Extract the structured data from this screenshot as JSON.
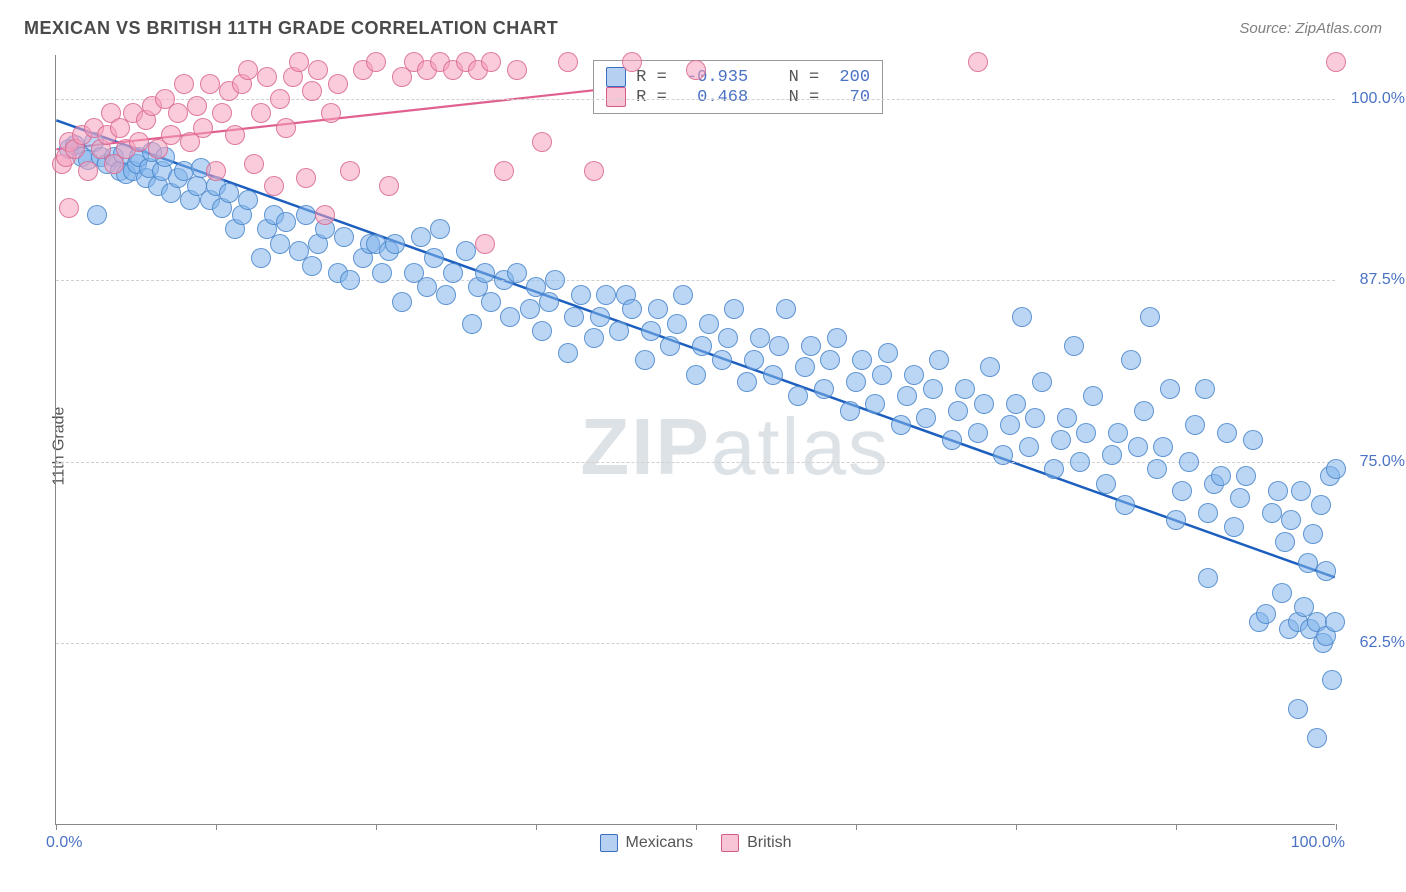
{
  "title": "MEXICAN VS BRITISH 11TH GRADE CORRELATION CHART",
  "source_prefix": "Source: ",
  "source_link": "ZipAtlas.com",
  "ylabel": "11th Grade",
  "watermark": "ZIPatlas",
  "chart": {
    "type": "scatter",
    "xlim": [
      0,
      100
    ],
    "ylim": [
      50,
      103
    ],
    "x_pct_of_width": true,
    "yticks": [
      62.5,
      75.0,
      87.5,
      100.0
    ],
    "ytick_labels": [
      "62.5%",
      "75.0%",
      "87.5%",
      "100.0%"
    ],
    "xtick_labels": {
      "left": "0.0%",
      "right": "100.0%"
    },
    "xtick_positions": [
      0,
      12.5,
      25,
      37.5,
      50,
      62.5,
      75,
      87.5,
      100
    ],
    "background_color": "#ffffff",
    "grid_color": "#d0d0d0",
    "dot_radius": 10,
    "series": [
      {
        "name": "Mexicans",
        "color_fill": "rgba(130,180,235,0.55)",
        "color_stroke": "rgba(70,130,200,0.8)",
        "regression": {
          "x1": 0,
          "y1": 98.5,
          "x2": 100,
          "y2": 67.0,
          "color": "#1d5fbf",
          "width": 2.5
        },
        "R": -0.935,
        "N": 200,
        "points": [
          [
            1,
            96.5
          ],
          [
            1.5,
            96.8
          ],
          [
            2,
            96
          ],
          [
            2.5,
            95.8
          ],
          [
            3,
            97
          ],
          [
            3.2,
            92
          ],
          [
            3.5,
            96
          ],
          [
            4,
            95.5
          ],
          [
            4.5,
            96
          ],
          [
            5,
            95
          ],
          [
            5.2,
            96.2
          ],
          [
            5.5,
            94.8
          ],
          [
            6,
            95
          ],
          [
            6.3,
            95.5
          ],
          [
            6.5,
            96
          ],
          [
            7,
            94.5
          ],
          [
            7.3,
            95.2
          ],
          [
            7.5,
            96.3
          ],
          [
            8,
            94
          ],
          [
            8.3,
            95
          ],
          [
            8.5,
            96
          ],
          [
            9,
            93.5
          ],
          [
            9.5,
            94.5
          ],
          [
            10,
            95
          ],
          [
            10.5,
            93
          ],
          [
            11,
            94
          ],
          [
            11.3,
            95.2
          ],
          [
            12,
            93
          ],
          [
            12.5,
            94
          ],
          [
            13,
            92.5
          ],
          [
            13.5,
            93.5
          ],
          [
            14,
            91
          ],
          [
            14.5,
            92
          ],
          [
            15,
            93
          ],
          [
            16,
            89
          ],
          [
            16.5,
            91
          ],
          [
            17,
            92
          ],
          [
            17.5,
            90
          ],
          [
            18,
            91.5
          ],
          [
            19,
            89.5
          ],
          [
            19.5,
            92
          ],
          [
            20,
            88.5
          ],
          [
            20.5,
            90
          ],
          [
            21,
            91
          ],
          [
            22,
            88
          ],
          [
            22.5,
            90.5
          ],
          [
            23,
            87.5
          ],
          [
            24,
            89
          ],
          [
            24.5,
            90
          ],
          [
            25,
            90
          ],
          [
            25.5,
            88
          ],
          [
            26,
            89.5
          ],
          [
            26.5,
            90
          ],
          [
            27,
            86
          ],
          [
            28,
            88
          ],
          [
            28.5,
            90.5
          ],
          [
            29,
            87
          ],
          [
            29.5,
            89
          ],
          [
            30,
            91
          ],
          [
            30.5,
            86.5
          ],
          [
            31,
            88
          ],
          [
            32,
            89.5
          ],
          [
            32.5,
            84.5
          ],
          [
            33,
            87
          ],
          [
            33.5,
            88
          ],
          [
            34,
            86
          ],
          [
            35,
            87.5
          ],
          [
            35.5,
            85
          ],
          [
            36,
            88
          ],
          [
            37,
            85.5
          ],
          [
            37.5,
            87
          ],
          [
            38,
            84
          ],
          [
            38.5,
            86
          ],
          [
            39,
            87.5
          ],
          [
            40,
            82.5
          ],
          [
            40.5,
            85
          ],
          [
            41,
            86.5
          ],
          [
            42,
            83.5
          ],
          [
            42.5,
            85
          ],
          [
            43,
            86.5
          ],
          [
            44,
            84
          ],
          [
            44.5,
            86.5
          ],
          [
            45,
            85.5
          ],
          [
            46,
            82
          ],
          [
            46.5,
            84
          ],
          [
            47,
            85.5
          ],
          [
            48,
            83
          ],
          [
            48.5,
            84.5
          ],
          [
            49,
            86.5
          ],
          [
            50,
            81
          ],
          [
            50.5,
            83
          ],
          [
            51,
            84.5
          ],
          [
            52,
            82
          ],
          [
            52.5,
            83.5
          ],
          [
            53,
            85.5
          ],
          [
            54,
            80.5
          ],
          [
            54.5,
            82
          ],
          [
            55,
            83.5
          ],
          [
            56,
            81
          ],
          [
            56.5,
            83
          ],
          [
            57,
            85.5
          ],
          [
            58,
            79.5
          ],
          [
            58.5,
            81.5
          ],
          [
            59,
            83
          ],
          [
            60,
            80
          ],
          [
            60.5,
            82
          ],
          [
            61,
            83.5
          ],
          [
            62,
            78.5
          ],
          [
            62.5,
            80.5
          ],
          [
            63,
            82
          ],
          [
            64,
            79
          ],
          [
            64.5,
            81
          ],
          [
            65,
            82.5
          ],
          [
            66,
            77.5
          ],
          [
            66.5,
            79.5
          ],
          [
            67,
            81
          ],
          [
            68,
            78
          ],
          [
            68.5,
            80
          ],
          [
            69,
            82
          ],
          [
            70,
            76.5
          ],
          [
            70.5,
            78.5
          ],
          [
            71,
            80
          ],
          [
            72,
            77
          ],
          [
            72.5,
            79
          ],
          [
            73,
            81.5
          ],
          [
            74,
            75.5
          ],
          [
            74.5,
            77.5
          ],
          [
            75,
            79
          ],
          [
            75.5,
            85
          ],
          [
            76,
            76
          ],
          [
            76.5,
            78
          ],
          [
            77,
            80.5
          ],
          [
            78,
            74.5
          ],
          [
            78.5,
            76.5
          ],
          [
            79,
            78
          ],
          [
            79.5,
            83
          ],
          [
            80,
            75
          ],
          [
            80.5,
            77
          ],
          [
            81,
            79.5
          ],
          [
            82,
            73.5
          ],
          [
            82.5,
            75.5
          ],
          [
            83,
            77
          ],
          [
            83.5,
            72
          ],
          [
            84,
            82
          ],
          [
            84.5,
            76
          ],
          [
            85,
            78.5
          ],
          [
            85.5,
            85
          ],
          [
            86,
            74.5
          ],
          [
            86.5,
            76
          ],
          [
            87,
            80
          ],
          [
            87.5,
            71
          ],
          [
            88,
            73
          ],
          [
            88.5,
            75
          ],
          [
            89,
            77.5
          ],
          [
            89.8,
            80
          ],
          [
            90,
            71.5
          ],
          [
            90.5,
            73.5
          ],
          [
            91,
            74
          ],
          [
            91.5,
            77
          ],
          [
            92,
            70.5
          ],
          [
            92.5,
            72.5
          ],
          [
            93,
            74
          ],
          [
            93.5,
            76.5
          ],
          [
            94,
            64
          ],
          [
            94.5,
            64.5
          ],
          [
            95,
            71.5
          ],
          [
            95.5,
            73
          ],
          [
            95.8,
            66
          ],
          [
            96,
            69.5
          ],
          [
            96.3,
            63.5
          ],
          [
            96.5,
            71
          ],
          [
            97,
            64
          ],
          [
            97.3,
            73
          ],
          [
            97.5,
            65
          ],
          [
            97.8,
            68
          ],
          [
            98,
            63.5
          ],
          [
            98.2,
            70
          ],
          [
            98.5,
            64
          ],
          [
            98.8,
            72
          ],
          [
            99,
            62.5
          ],
          [
            99.2,
            67.5
          ],
          [
            99.5,
            74
          ],
          [
            99.2,
            63
          ],
          [
            99.7,
            60
          ],
          [
            99.9,
            64
          ],
          [
            100,
            74.5
          ],
          [
            98.5,
            56
          ],
          [
            97,
            58
          ],
          [
            90,
            67
          ]
        ]
      },
      {
        "name": "British",
        "color_fill": "rgba(245,160,190,0.55)",
        "color_stroke": "rgba(215,100,140,0.8)",
        "regression": {
          "x1": 0,
          "y1": 96.5,
          "x2": 62,
          "y2": 102.5,
          "color": "#e06090",
          "width": 2.2
        },
        "R": 0.468,
        "N": 70,
        "points": [
          [
            0.5,
            95.5
          ],
          [
            0.8,
            96
          ],
          [
            1,
            97
          ],
          [
            1,
            92.5
          ],
          [
            1.5,
            96.5
          ],
          [
            2,
            97.5
          ],
          [
            2.5,
            95
          ],
          [
            3,
            98
          ],
          [
            3.5,
            96.5
          ],
          [
            4,
            97.5
          ],
          [
            4.3,
            99
          ],
          [
            4.5,
            95.5
          ],
          [
            5,
            98
          ],
          [
            5.5,
            96.5
          ],
          [
            6,
            99
          ],
          [
            6.5,
            97
          ],
          [
            7,
            98.5
          ],
          [
            7.5,
            99.5
          ],
          [
            8,
            96.5
          ],
          [
            8.5,
            100
          ],
          [
            9,
            97.5
          ],
          [
            9.5,
            99
          ],
          [
            10,
            101
          ],
          [
            10.5,
            97
          ],
          [
            11,
            99.5
          ],
          [
            11.5,
            98
          ],
          [
            12,
            101
          ],
          [
            12.5,
            95
          ],
          [
            13,
            99
          ],
          [
            13.5,
            100.5
          ],
          [
            14,
            97.5
          ],
          [
            14.5,
            101
          ],
          [
            15,
            102
          ],
          [
            15.5,
            95.5
          ],
          [
            16,
            99
          ],
          [
            16.5,
            101.5
          ],
          [
            17,
            94
          ],
          [
            17.5,
            100
          ],
          [
            18,
            98
          ],
          [
            18.5,
            101.5
          ],
          [
            19,
            102.5
          ],
          [
            19.5,
            94.5
          ],
          [
            20,
            100.5
          ],
          [
            20.5,
            102
          ],
          [
            21,
            92
          ],
          [
            21.5,
            99
          ],
          [
            22,
            101
          ],
          [
            23,
            95
          ],
          [
            24,
            102
          ],
          [
            25,
            102.5
          ],
          [
            26,
            94
          ],
          [
            27,
            101.5
          ],
          [
            28,
            102.5
          ],
          [
            29,
            102
          ],
          [
            30,
            102.5
          ],
          [
            31,
            102
          ],
          [
            32,
            102.5
          ],
          [
            33,
            102
          ],
          [
            33.5,
            90
          ],
          [
            34,
            102.5
          ],
          [
            35,
            95
          ],
          [
            36,
            102
          ],
          [
            38,
            97
          ],
          [
            40,
            102.5
          ],
          [
            42,
            95
          ],
          [
            45,
            102.5
          ],
          [
            50,
            102
          ],
          [
            72,
            102.5
          ],
          [
            100,
            102.5
          ]
        ]
      }
    ]
  },
  "legend": {
    "series1": "Mexicans",
    "series2": "British"
  },
  "stats": {
    "r_label": "R = ",
    "n_label": "N = ",
    "row1": {
      "R": "-0.935",
      "N": "200"
    },
    "row2": {
      "R": " 0.468",
      "N": " 70"
    }
  }
}
